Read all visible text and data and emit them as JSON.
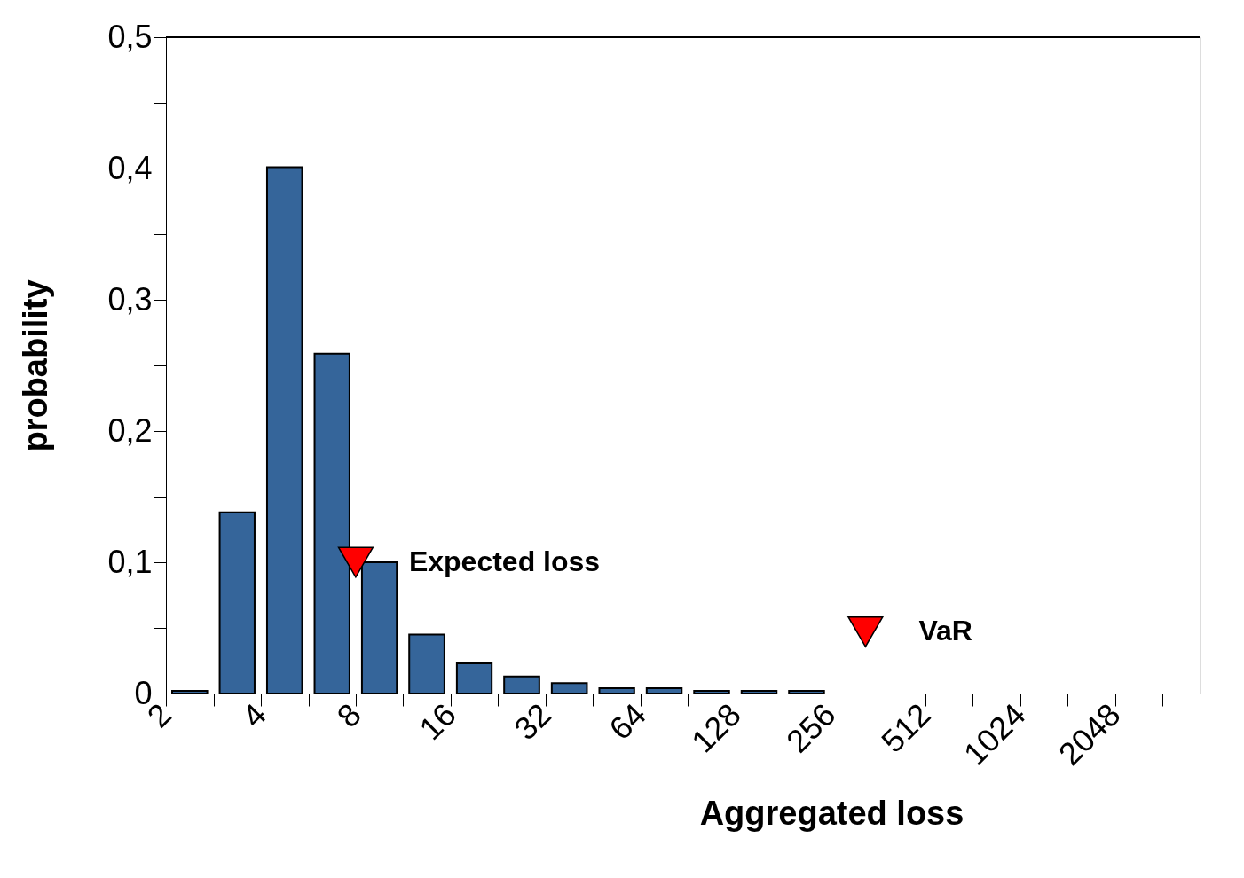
{
  "chart_data": {
    "type": "histogram",
    "xlabel": "Aggregated loss",
    "ylabel": "probability",
    "bins": [
      2,
      2.83,
      4,
      5.66,
      8,
      11.3,
      16,
      22.6,
      32,
      45.3,
      64,
      90.5,
      128,
      181,
      256
    ],
    "values": [
      0.002,
      0.138,
      0.401,
      0.259,
      0.1,
      0.045,
      0.023,
      0.013,
      0.008,
      0.004,
      0.004,
      0.002,
      0.002,
      0.002
    ],
    "color": "#35659a",
    "log": "x",
    "xlim": [
      2,
      3800
    ],
    "xticks": [
      2,
      {
        "value": 2.83,
        "label": null
      },
      4,
      {
        "value": 5.66,
        "label": null
      },
      8,
      {
        "value": 11.3,
        "label": null
      },
      16,
      {
        "value": 22.6,
        "label": null
      },
      32,
      {
        "value": 45.3,
        "label": null
      },
      64,
      {
        "value": 90.5,
        "label": null
      },
      128,
      {
        "value": 181,
        "label": null
      },
      256,
      {
        "value": 362,
        "label": null
      },
      512,
      {
        "value": 724,
        "label": null
      },
      1024,
      {
        "value": 1448,
        "label": null
      },
      2048,
      {
        "value": 2896,
        "label": null
      }
    ],
    "ylim": [
      0,
      0.5
    ],
    "yticks": [
      {
        "value": 0,
        "label": "0"
      },
      {
        "value": 0.05,
        "label": null
      },
      {
        "value": 0.1,
        "label": "0,1"
      },
      {
        "value": 0.15,
        "label": null
      },
      {
        "value": 0.2,
        "label": "0,2"
      },
      {
        "value": 0.25,
        "label": null
      },
      {
        "value": 0.3,
        "label": "0,3"
      },
      {
        "value": 0.35,
        "label": null
      },
      {
        "value": 0.4,
        "label": "0,4"
      },
      {
        "value": 0.45,
        "label": null
      },
      {
        "value": 0.5,
        "label": "0,5"
      }
    ],
    "series": [
      {
        "type": "scatter",
        "x": [
          8,
          331
        ],
        "values": [
          0.1,
          0.047
        ],
        "color": "#ff0000",
        "marker": "triangle"
      }
    ],
    "annotations": [
      "Expected loss",
      "VaR"
    ],
    "grid": false
  }
}
